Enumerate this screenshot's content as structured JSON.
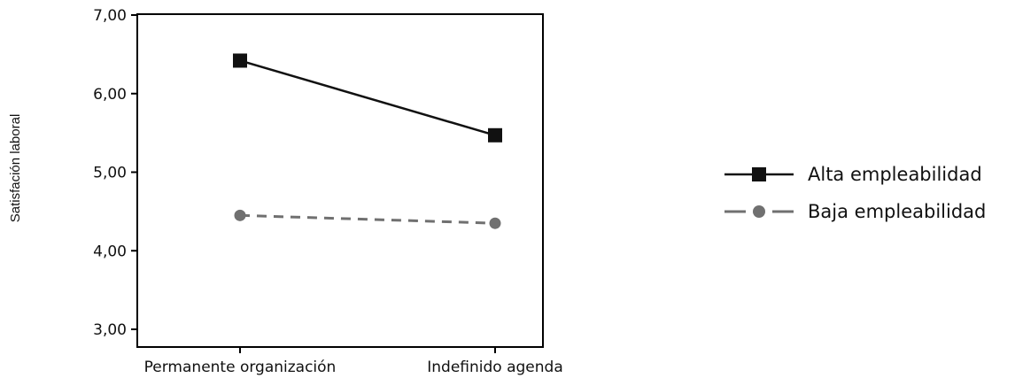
{
  "chart_data": {
    "type": "line",
    "categories": [
      "Permanente organización",
      "Indefinido agenda"
    ],
    "ylabel": "Satisfación laboral",
    "xlabel": "",
    "ylim": [
      3.0,
      7.0
    ],
    "yticks": [
      "3,00",
      "4,00",
      "5,00",
      "6,00",
      "7,00"
    ],
    "grid": false,
    "legend_position": "right",
    "series": [
      {
        "name": "Alta empleabilidad",
        "values": [
          6.42,
          5.47
        ],
        "marker": "square",
        "line": "solid",
        "color": "#111111"
      },
      {
        "name": "Baja empleabilidad",
        "values": [
          4.45,
          4.35
        ],
        "marker": "circle",
        "line": "dashed",
        "color": "#707070"
      }
    ]
  }
}
